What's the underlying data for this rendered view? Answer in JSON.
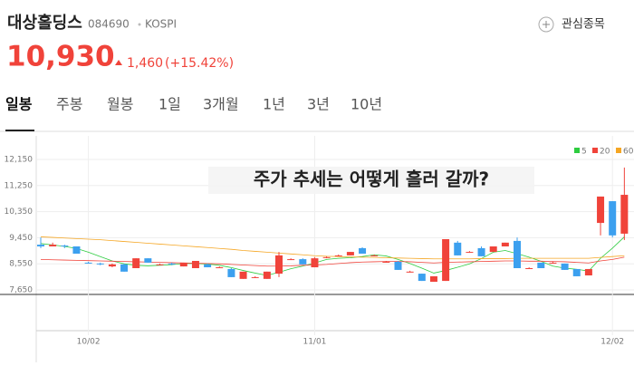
{
  "header": {
    "name": "대상홀딩스",
    "code": "084690",
    "market": "KOSPI",
    "watch_button": "관심종목"
  },
  "price": {
    "current": "10,930",
    "change": "1,460",
    "change_pct": "(+15.42%)"
  },
  "tabs": [
    "일봉",
    "주봉",
    "월봉",
    "1일",
    "3개월",
    "1년",
    "3년",
    "10년"
  ],
  "chart_data": {
    "type": "candlestick",
    "annotation": "주가 추세는 어떻게 흘러 갈까?",
    "categories": [
      null,
      null,
      null,
      null,
      "10/02",
      null,
      null,
      null,
      null,
      null,
      null,
      null,
      null,
      null,
      null,
      null,
      null,
      null,
      null,
      null,
      null,
      null,
      null,
      "11/01",
      null,
      null,
      null,
      null,
      null,
      null,
      null,
      null,
      null,
      null,
      null,
      null,
      null,
      null,
      null,
      null,
      null,
      null,
      null,
      null,
      null,
      null,
      null,
      null,
      "12/02",
      null
    ],
    "open": [
      9210,
      9150,
      9180,
      9150,
      8590,
      8560,
      8460,
      8530,
      8400,
      8740,
      8530,
      8560,
      8460,
      8400,
      8530,
      8430,
      8370,
      8030,
      8090,
      8030,
      8210,
      8710,
      8710,
      8430,
      8780,
      8840,
      8840,
      9090,
      8840,
      8620,
      8620,
      8280,
      8210,
      7930,
      7960,
      9280,
      8960,
      9090,
      8960,
      9150,
      9340,
      8400,
      8590,
      8590,
      8560,
      8370,
      8150,
      9960,
      10710,
      9590
    ],
    "high": [
      9460,
      9280,
      9210,
      9150,
      8620,
      8590,
      8560,
      8560,
      8740,
      8740,
      8560,
      8590,
      8590,
      8650,
      8560,
      8460,
      8400,
      8280,
      8120,
      8280,
      8960,
      8740,
      8740,
      8780,
      8810,
      8870,
      8960,
      9120,
      8870,
      8650,
      8650,
      8310,
      8210,
      8120,
      9400,
      9340,
      8990,
      9150,
      9150,
      9280,
      9460,
      8430,
      8590,
      8620,
      8560,
      8370,
      8370,
      10870,
      10710,
      11870
    ],
    "low": [
      9090,
      9150,
      9090,
      8900,
      8560,
      8500,
      8430,
      8280,
      8400,
      8590,
      8500,
      8500,
      8460,
      8400,
      8430,
      8400,
      8090,
      8030,
      8060,
      8030,
      8090,
      8680,
      8530,
      8430,
      8740,
      8810,
      8840,
      8900,
      8810,
      8590,
      8340,
      8250,
      7960,
      7930,
      7960,
      8840,
      8930,
      8810,
      8960,
      9150,
      8400,
      8370,
      8400,
      8560,
      8340,
      8120,
      8150,
      9530,
      9460,
      9370
    ],
    "close": [
      9150,
      9210,
      9150,
      8900,
      8560,
      8530,
      8530,
      8280,
      8740,
      8590,
      8530,
      8530,
      8590,
      8650,
      8430,
      8430,
      8090,
      8280,
      8090,
      8280,
      8840,
      8710,
      8530,
      8740,
      8780,
      8840,
      8960,
      8900,
      8840,
      8620,
      8340,
      8280,
      7960,
      8120,
      9400,
      8840,
      8960,
      8810,
      9150,
      9280,
      8400,
      8400,
      8400,
      8590,
      8340,
      8120,
      8370,
      10870,
      9530,
      10930
    ],
    "up_color": "#f0433a",
    "down_color": "#3ca0ef",
    "ylim": [
      7650,
      12150
    ],
    "yticks": [
      {
        "value": 12150,
        "label": "12,150"
      },
      {
        "value": 11250,
        "label": "11,250"
      },
      {
        "value": 10350,
        "label": "10,350"
      },
      {
        "value": 9450,
        "label": "9,450"
      },
      {
        "value": 8550,
        "label": "8,550"
      },
      {
        "value": 7650,
        "label": "7,650"
      }
    ],
    "grid": true,
    "series": [
      {
        "name": "5",
        "color": "#2ecc40",
        "values": [
          9250,
          9200,
          9150,
          9080,
          8950,
          8800,
          8650,
          8550,
          8500,
          8480,
          8500,
          8520,
          8560,
          8560,
          8540,
          8500,
          8420,
          8320,
          8230,
          8150,
          8260,
          8380,
          8470,
          8580,
          8700,
          8740,
          8760,
          8800,
          8860,
          8820,
          8700,
          8560,
          8400,
          8230,
          8320,
          8430,
          8550,
          8730,
          8950,
          9010,
          8900,
          8780,
          8640,
          8470,
          8400,
          8360,
          8300,
          8740,
          9090,
          9480
        ]
      },
      {
        "name": "20",
        "color": "#f0433a",
        "values": [
          8700,
          8690,
          8680,
          8670,
          8660,
          8650,
          8640,
          8630,
          8620,
          8610,
          8600,
          8590,
          8580,
          8570,
          8560,
          8550,
          8530,
          8510,
          8490,
          8470,
          8470,
          8480,
          8500,
          8510,
          8530,
          8560,
          8590,
          8610,
          8620,
          8630,
          8630,
          8620,
          8600,
          8580,
          8600,
          8610,
          8620,
          8630,
          8640,
          8650,
          8650,
          8640,
          8640,
          8630,
          8620,
          8600,
          8580,
          8650,
          8700,
          8780
        ]
      },
      {
        "name": "60",
        "color": "#f5a623",
        "values": [
          9480,
          9460,
          9440,
          9420,
          9400,
          9380,
          9350,
          9320,
          9290,
          9260,
          9230,
          9200,
          9170,
          9140,
          9110,
          9080,
          9050,
          9010,
          8980,
          8950,
          8920,
          8890,
          8860,
          8830,
          8810,
          8800,
          8790,
          8780,
          8770,
          8760,
          8750,
          8740,
          8730,
          8720,
          8720,
          8720,
          8720,
          8730,
          8730,
          8730,
          8740,
          8740,
          8740,
          8740,
          8740,
          8740,
          8740,
          8770,
          8800,
          8830
        ]
      }
    ]
  }
}
